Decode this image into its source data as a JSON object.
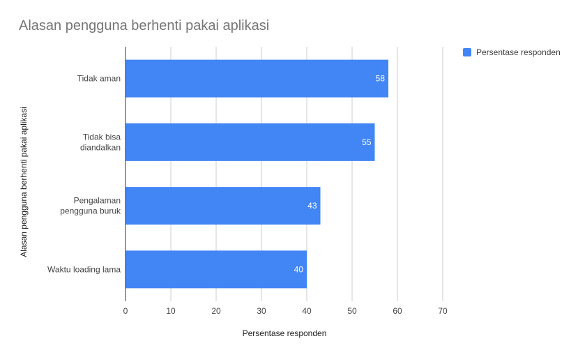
{
  "chart_data": {
    "type": "bar",
    "orientation": "horizontal",
    "title": "Alasan pengguna berhenti pakai aplikasi",
    "xlabel": "Persentase responden",
    "ylabel": "Alasan pengguna berhenti pakai aplikasi",
    "categories": [
      [
        "Tidak aman"
      ],
      [
        "Tidak bisa",
        "diandalkan"
      ],
      [
        "Pengalaman",
        "pengguna buruk"
      ],
      [
        "Waktu loading lama"
      ]
    ],
    "series": [
      {
        "name": "Persentase responden",
        "values": [
          58,
          55,
          43,
          40
        ],
        "color": "#4285f4"
      }
    ],
    "xlim": [
      0,
      70
    ],
    "xticks": [
      "0",
      "10",
      "20",
      "30",
      "40",
      "50",
      "60",
      "70"
    ],
    "grid": true,
    "legend_position": "right",
    "data_labels": true
  }
}
